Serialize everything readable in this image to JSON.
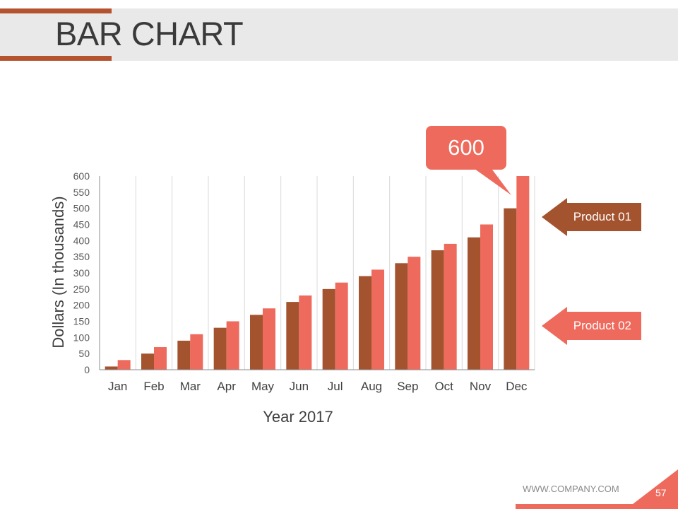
{
  "slide": {
    "title": "BAR CHART",
    "footer_url": "WWW.COMPANY.COM",
    "page_number": "57",
    "callout_value": "600"
  },
  "colors": {
    "accent_dark": "#a4532f",
    "accent_light": "#ee6a5d",
    "title_band": "#e9e9e9"
  },
  "chart_data": {
    "type": "bar",
    "categories": [
      "Jan",
      "Feb",
      "Mar",
      "Apr",
      "May",
      "Jun",
      "Jul",
      "Aug",
      "Sep",
      "Oct",
      "Nov",
      "Dec"
    ],
    "series": [
      {
        "name": "Product 01",
        "color": "#a4532f",
        "values": [
          10,
          50,
          90,
          130,
          170,
          210,
          250,
          290,
          330,
          370,
          410,
          500
        ]
      },
      {
        "name": "Product 02",
        "color": "#ee6a5d",
        "values": [
          30,
          70,
          110,
          150,
          190,
          230,
          270,
          310,
          350,
          390,
          450,
          600
        ]
      }
    ],
    "xlabel": "Year 2017",
    "ylabel": "Dollars (In thousands)",
    "ylim": [
      0,
      600
    ],
    "yticks": [
      0,
      50,
      100,
      150,
      200,
      250,
      300,
      350,
      400,
      450,
      500,
      550,
      600
    ],
    "grid": "vertical",
    "legend": "right"
  }
}
